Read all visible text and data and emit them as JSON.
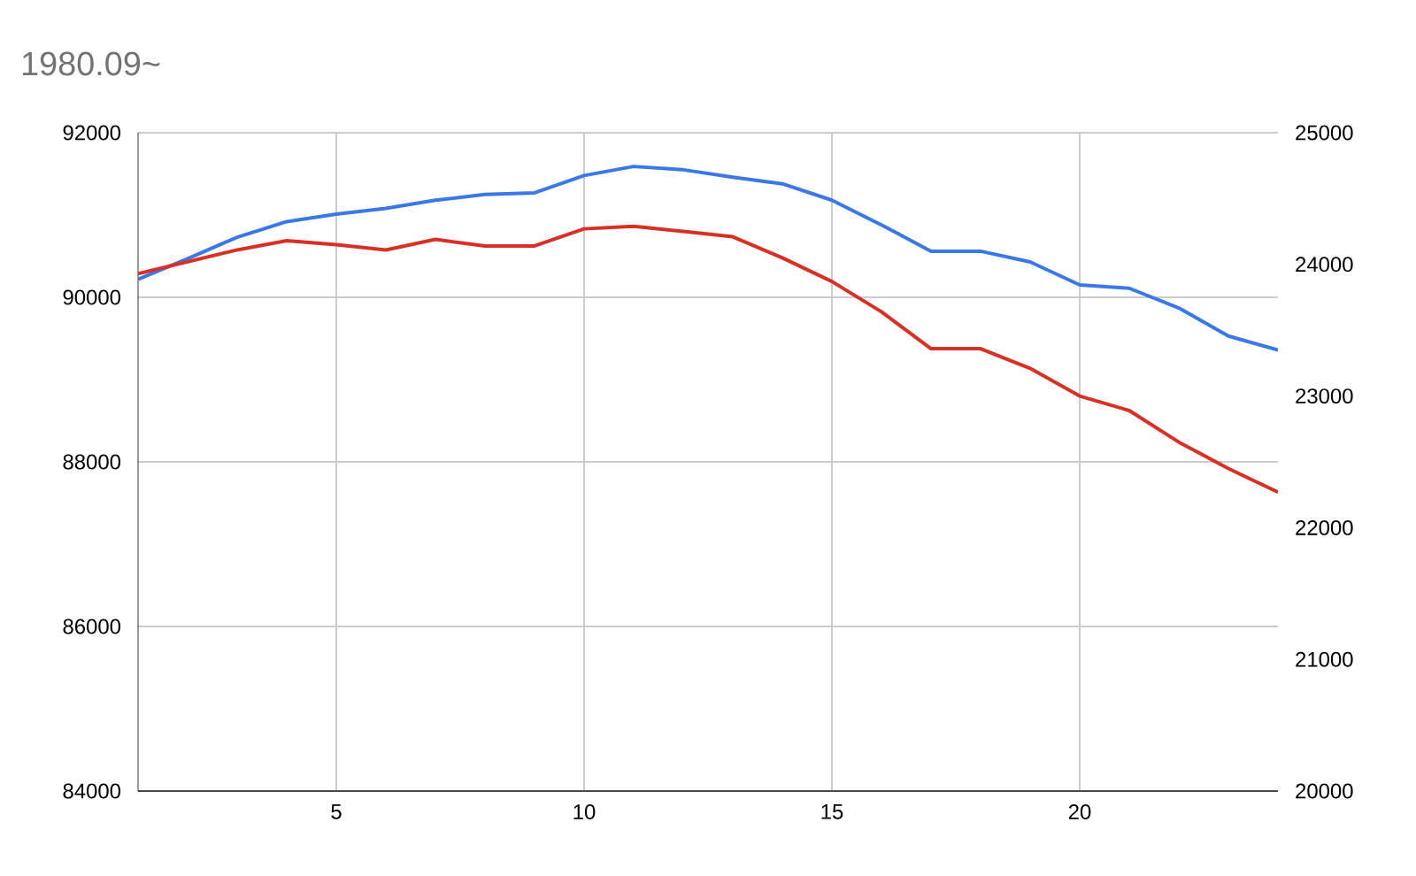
{
  "chart_data": {
    "type": "line",
    "title": "1980.09~",
    "x": [
      1,
      2,
      3,
      4,
      5,
      6,
      7,
      8,
      9,
      10,
      11,
      12,
      13,
      14,
      15,
      16,
      17,
      18,
      19,
      20,
      21,
      22,
      23,
      24
    ],
    "series": [
      {
        "color": "#3b78e7",
        "axis": "y",
        "values": [
          90220,
          90470,
          90730,
          90920,
          91010,
          91080,
          91180,
          91250,
          91270,
          91480,
          91590,
          91550,
          91460,
          91380,
          91180,
          90880,
          90560,
          90560,
          90430,
          90150,
          90110,
          89870,
          89530,
          89360
        ]
      },
      {
        "color": "#d93025",
        "axis": "y2",
        "values": [
          23930,
          24020,
          24110,
          24180,
          24150,
          24110,
          24190,
          24140,
          24140,
          24270,
          24290,
          24250,
          24210,
          24050,
          23870,
          23640,
          23360,
          23360,
          23210,
          23000,
          22890,
          22650,
          22450,
          22270
        ]
      }
    ],
    "xlim": [
      1,
      24
    ],
    "xticks": [
      5,
      10,
      15,
      20
    ],
    "ylim": [
      84000,
      92000
    ],
    "yticks": [
      84000,
      86000,
      88000,
      90000,
      92000
    ],
    "y2lim": [
      20000,
      25000
    ],
    "y2ticks": [
      20000,
      21000,
      22000,
      23000,
      24000,
      25000
    ],
    "grid": true,
    "marker": "none",
    "line_style": "solid"
  }
}
